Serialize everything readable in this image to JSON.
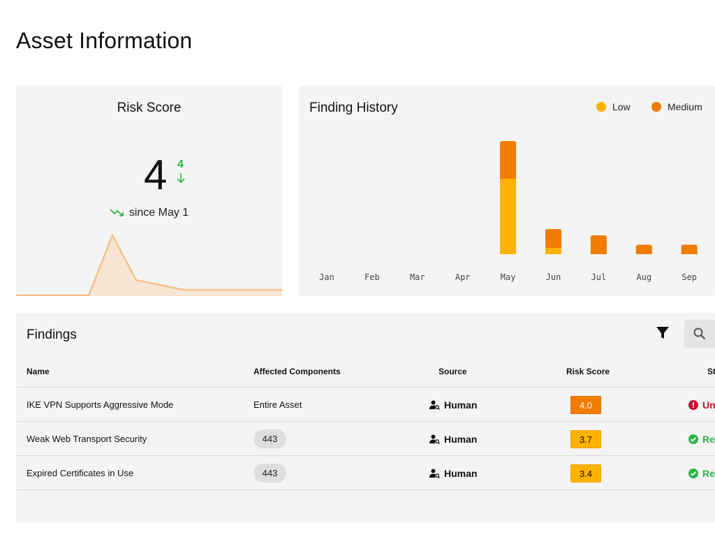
{
  "page": {
    "title": "Asset Information"
  },
  "risk_score": {
    "title": "Risk Score",
    "value": "4",
    "delta": "4",
    "since": "since May 1",
    "colors": {
      "delta": "#2db34a",
      "spark_line": "#f5c08a",
      "spark_fill": "#f8e5d3"
    }
  },
  "finding_history": {
    "title": "Finding History",
    "legend": [
      {
        "label": "Low",
        "color": "#ffb200"
      },
      {
        "label": "Medium",
        "color": "#f27c00"
      }
    ]
  },
  "chart_data": {
    "type": "bar",
    "stacked": true,
    "categories": [
      "Jan",
      "Feb",
      "Mar",
      "Apr",
      "May",
      "Jun",
      "Jul",
      "Aug",
      "Sep"
    ],
    "series": [
      {
        "name": "Low",
        "values": [
          0,
          0,
          0,
          0,
          12,
          1,
          0,
          0,
          0
        ]
      },
      {
        "name": "Medium",
        "values": [
          0,
          0,
          0,
          0,
          6,
          3,
          3,
          1.5,
          1.5
        ]
      }
    ],
    "ylim": [
      0,
      18
    ],
    "grid": false,
    "legend": "top-right"
  },
  "findings": {
    "title": "Findings",
    "filter_icon": "filter-icon",
    "search_icon": "search-icon",
    "columns": {
      "name": "Name",
      "components": "Affected Components",
      "source": "Source",
      "risk": "Risk Score",
      "status": "St"
    },
    "rows": [
      {
        "name": "IKE VPN Supports Aggressive Mode",
        "components": "Entire Asset",
        "components_chip": false,
        "source": "Human",
        "risk": "4.0",
        "risk_level": "med",
        "status": "Un",
        "status_type": "un"
      },
      {
        "name": "Weak Web Transport Security",
        "components": "443",
        "components_chip": true,
        "source": "Human",
        "risk": "3.7",
        "risk_level": "low",
        "status": "Rei",
        "status_type": "rem"
      },
      {
        "name": "Expired Certificates in Use",
        "components": "443",
        "components_chip": true,
        "source": "Human",
        "risk": "3.4",
        "risk_level": "low",
        "status": "Rei",
        "status_type": "rem"
      }
    ]
  }
}
